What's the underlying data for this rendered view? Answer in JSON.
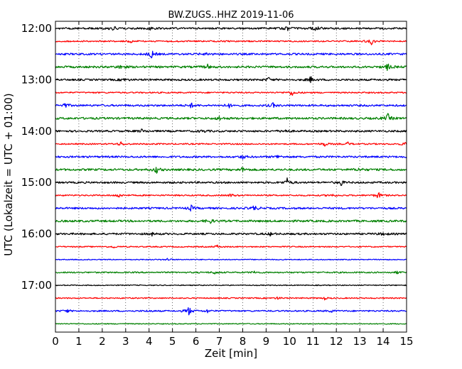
{
  "chart_data": {
    "type": "line",
    "title": "BW.ZUGS..HHZ 2019-11-06",
    "xlabel": "Zeit  [min]",
    "ylabel": "UTC (Lokalzeit = UTC + 01:00)",
    "xlim": [
      0,
      15
    ],
    "x_ticks": [
      "0",
      "1",
      "2",
      "3",
      "4",
      "5",
      "6",
      "7",
      "8",
      "9",
      "10",
      "11",
      "12",
      "13",
      "14",
      "15"
    ],
    "y_tick_labels": [
      "12:00",
      "13:00",
      "14:00",
      "15:00",
      "16:00",
      "17:00"
    ],
    "grid": "vertical dotted at each minute",
    "trace_colors": [
      "#000000",
      "#ff0000",
      "#0000ff",
      "#008000"
    ],
    "series": [
      {
        "start": "12:00",
        "color": "#000000",
        "amplitude": 0.8,
        "events": [
          [
            2.5,
            2.0
          ],
          [
            4.0,
            1.6
          ],
          [
            9.9,
            1.5
          ],
          [
            11.1,
            2.8
          ]
        ]
      },
      {
        "start": "12:15",
        "color": "#ff0000",
        "amplitude": 0.6,
        "events": [
          [
            3.2,
            1.0
          ],
          [
            13.5,
            2.2
          ]
        ]
      },
      {
        "start": "12:30",
        "color": "#0000ff",
        "amplitude": 0.8,
        "events": [
          [
            4.1,
            3.0
          ],
          [
            6.5,
            1.2
          ]
        ]
      },
      {
        "start": "12:45",
        "color": "#008000",
        "amplitude": 0.9,
        "events": [
          [
            2.8,
            2.0
          ],
          [
            6.5,
            1.5
          ],
          [
            14.2,
            2.5
          ]
        ]
      },
      {
        "start": "13:00",
        "color": "#000000",
        "amplitude": 0.8,
        "events": [
          [
            2.9,
            1.2
          ],
          [
            9.1,
            1.5
          ],
          [
            10.9,
            2.0
          ]
        ]
      },
      {
        "start": "13:15",
        "color": "#ff0000",
        "amplitude": 0.6,
        "events": [
          [
            10.1,
            2.5
          ]
        ]
      },
      {
        "start": "13:30",
        "color": "#0000ff",
        "amplitude": 0.8,
        "events": [
          [
            0.4,
            2.0
          ],
          [
            5.8,
            1.5
          ],
          [
            7.4,
            1.6
          ],
          [
            9.3,
            1.5
          ]
        ]
      },
      {
        "start": "13:45",
        "color": "#008000",
        "amplitude": 0.9,
        "events": [
          [
            7.0,
            1.4
          ],
          [
            14.2,
            2.8
          ]
        ]
      },
      {
        "start": "14:00",
        "color": "#000000",
        "amplitude": 0.8,
        "events": [
          [
            3.7,
            1.2
          ],
          [
            6.3,
            1.4
          ],
          [
            9.8,
            1.8
          ]
        ]
      },
      {
        "start": "14:15",
        "color": "#ff0000",
        "amplitude": 0.6,
        "events": [
          [
            2.8,
            1.8
          ],
          [
            11.5,
            1.6
          ],
          [
            12.5,
            1.2
          ],
          [
            14.9,
            1.4
          ]
        ]
      },
      {
        "start": "14:30",
        "color": "#0000ff",
        "amplitude": 0.8,
        "events": [
          [
            8.0,
            1.6
          ],
          [
            9.5,
            1.3
          ]
        ]
      },
      {
        "start": "14:45",
        "color": "#008000",
        "amplitude": 0.9,
        "events": [
          [
            4.3,
            2.5
          ],
          [
            8.0,
            1.4
          ],
          [
            13.0,
            1.5
          ]
        ]
      },
      {
        "start": "15:00",
        "color": "#000000",
        "amplitude": 0.8,
        "events": [
          [
            9.9,
            2.8
          ],
          [
            12.2,
            2.0
          ]
        ]
      },
      {
        "start": "15:15",
        "color": "#ff0000",
        "amplitude": 0.6,
        "events": [
          [
            2.7,
            1.6
          ],
          [
            7.5,
            1.4
          ],
          [
            11.8,
            1.4
          ],
          [
            13.8,
            2.6
          ]
        ]
      },
      {
        "start": "15:30",
        "color": "#0000ff",
        "amplitude": 0.8,
        "events": [
          [
            5.8,
            1.8
          ],
          [
            8.5,
            2.2
          ]
        ]
      },
      {
        "start": "15:45",
        "color": "#008000",
        "amplitude": 0.9,
        "events": [
          [
            6.6,
            1.8
          ]
        ]
      },
      {
        "start": "16:00",
        "color": "#000000",
        "amplitude": 0.8,
        "events": [
          [
            4.1,
            1.2
          ],
          [
            9.2,
            1.2
          ],
          [
            14.0,
            1.3
          ]
        ]
      },
      {
        "start": "16:15",
        "color": "#ff0000",
        "amplitude": 0.5,
        "events": [
          [
            2.5,
            1.0
          ],
          [
            6.9,
            1.2
          ]
        ]
      },
      {
        "start": "16:30",
        "color": "#0000ff",
        "amplitude": 0.4,
        "events": [
          [
            4.8,
            1.2
          ]
        ]
      },
      {
        "start": "16:45",
        "color": "#008000",
        "amplitude": 0.6,
        "events": [
          [
            6.8,
            1.2
          ],
          [
            8.5,
            1.0
          ],
          [
            14.6,
            1.0
          ]
        ]
      },
      {
        "start": "17:00",
        "color": "#000000",
        "amplitude": 0.4,
        "events": []
      },
      {
        "start": "17:15",
        "color": "#ff0000",
        "amplitude": 0.5,
        "events": [
          [
            9.5,
            1.0
          ],
          [
            11.5,
            1.0
          ]
        ]
      },
      {
        "start": "17:30",
        "color": "#0000ff",
        "amplitude": 0.6,
        "events": [
          [
            0.5,
            1.2
          ],
          [
            4.0,
            1.0
          ],
          [
            5.7,
            3.5
          ],
          [
            6.5,
            1.2
          ],
          [
            11.8,
            1.2
          ]
        ]
      },
      {
        "start": "17:45",
        "color": "#008000",
        "amplitude": 0.4,
        "events": []
      }
    ]
  }
}
